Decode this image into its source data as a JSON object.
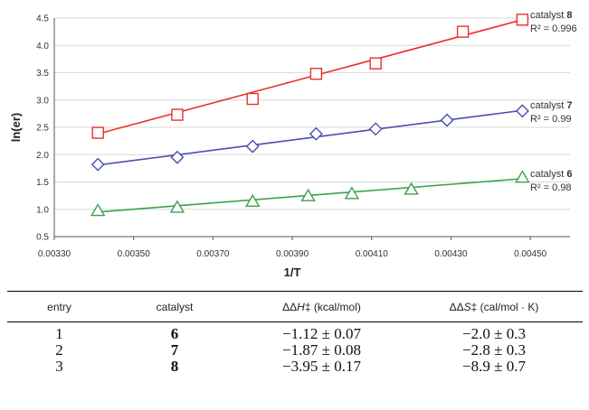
{
  "chart_data": {
    "type": "scatter",
    "xlabel": "1/T",
    "ylabel": "ln(er)",
    "xlim": [
      0.0033,
      0.0046
    ],
    "ylim": [
      0.5,
      4.5
    ],
    "x_ticks": [
      "0.00330",
      "0.00350",
      "0.00370",
      "0.00390",
      "0.00410",
      "0.00430",
      "0.00450"
    ],
    "y_ticks": [
      "0.5",
      "1.0",
      "1.5",
      "2.0",
      "2.5",
      "3.0",
      "3.5",
      "4.0",
      "4.5"
    ],
    "series": [
      {
        "name": "catalyst 8",
        "label_prefix": "catalyst ",
        "label_num": "8",
        "r2": "R² = 0.996",
        "marker": "square",
        "color": "#e8322a",
        "x": [
          0.00341,
          0.00361,
          0.0038,
          0.00396,
          0.00411,
          0.00433,
          0.00448
        ],
        "y": [
          2.4,
          2.73,
          3.02,
          3.48,
          3.67,
          4.25,
          4.47
        ],
        "fit": [
          [
            0.00341,
            2.38
          ],
          [
            0.00448,
            4.47
          ]
        ]
      },
      {
        "name": "catalyst 7",
        "label_prefix": "catalyst ",
        "label_num": "7",
        "r2": "R² = 0.99",
        "marker": "diamond",
        "color": "#4a4fb0",
        "x": [
          0.00341,
          0.00361,
          0.0038,
          0.00396,
          0.00411,
          0.00429,
          0.00448
        ],
        "y": [
          1.82,
          1.95,
          2.15,
          2.38,
          2.47,
          2.63,
          2.8
        ],
        "fit": [
          [
            0.00341,
            1.81
          ],
          [
            0.00448,
            2.81
          ]
        ]
      },
      {
        "name": "catalyst 6",
        "label_prefix": "catalyst ",
        "label_num": "6",
        "r2": "R² = 0.98",
        "marker": "triangle",
        "color": "#3aa24a",
        "x": [
          0.00341,
          0.00361,
          0.0038,
          0.00394,
          0.00405,
          0.0042,
          0.00448
        ],
        "y": [
          0.97,
          1.03,
          1.14,
          1.24,
          1.28,
          1.36,
          1.58
        ],
        "fit": [
          [
            0.00341,
            0.95
          ],
          [
            0.00448,
            1.56
          ]
        ]
      }
    ]
  },
  "table": {
    "headers": {
      "entry": "entry",
      "catalyst": "catalyst",
      "dh_pre": "ΔΔ",
      "dh_var": "H",
      "dh_post": "‡ (kcal/mol)",
      "ds_pre": "ΔΔ",
      "ds_var": "S",
      "ds_post": "‡ (cal/mol · K)"
    },
    "rows": [
      {
        "entry": "1",
        "catalyst": "6",
        "dh": "−1.12 ± 0.07",
        "ds": "−2.0 ± 0.3"
      },
      {
        "entry": "2",
        "catalyst": "7",
        "dh": "−1.87 ± 0.08",
        "ds": "−2.8 ± 0.3"
      },
      {
        "entry": "3",
        "catalyst": "8",
        "dh": "−3.95 ± 0.17",
        "ds": "−8.9 ± 0.7"
      }
    ]
  }
}
